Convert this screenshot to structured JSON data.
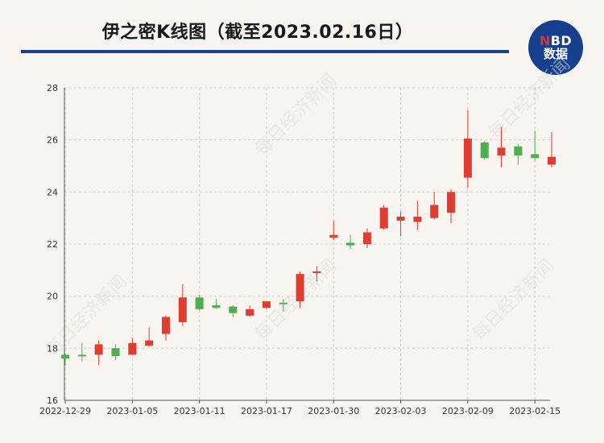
{
  "header": {
    "title": "伊之密K线图（截至2023.02.16日）",
    "logo_top_a": "N",
    "logo_top_b": "BD",
    "logo_bottom": "数据",
    "brand_color": "#163f8e",
    "watermark": "每日经济新闻"
  },
  "chart_data": {
    "type": "candlestick",
    "title": "伊之密K线图（截至2023.02.16日）",
    "ylim": [
      16,
      28
    ],
    "yticks": [
      16,
      18,
      20,
      22,
      24,
      26,
      28
    ],
    "xtick_labels": [
      "2022-12-29",
      "2023-01-05",
      "2023-01-11",
      "2023-01-17",
      "2023-01-30",
      "2023-02-03",
      "2023-02-09",
      "2023-02-15"
    ],
    "up_color": "#e03c31",
    "down_color": "#4caf50",
    "grid": true,
    "candles": [
      {
        "open": 17.75,
        "high": 17.8,
        "low": 17.35,
        "close": 17.6
      },
      {
        "open": 17.75,
        "high": 18.2,
        "low": 17.5,
        "close": 17.7
      },
      {
        "open": 17.75,
        "high": 18.3,
        "low": 17.35,
        "close": 18.15
      },
      {
        "open": 18.0,
        "high": 18.15,
        "low": 17.55,
        "close": 17.7
      },
      {
        "open": 17.75,
        "high": 18.4,
        "low": 17.75,
        "close": 18.2
      },
      {
        "open": 18.1,
        "high": 18.8,
        "low": 18.05,
        "close": 18.3
      },
      {
        "open": 18.55,
        "high": 19.25,
        "low": 18.3,
        "close": 19.2
      },
      {
        "open": 19.0,
        "high": 20.45,
        "low": 18.85,
        "close": 19.95
      },
      {
        "open": 19.95,
        "high": 20.05,
        "low": 19.45,
        "close": 19.5
      },
      {
        "open": 19.65,
        "high": 19.9,
        "low": 19.5,
        "close": 19.55
      },
      {
        "open": 19.6,
        "high": 19.65,
        "low": 19.2,
        "close": 19.35
      },
      {
        "open": 19.25,
        "high": 19.65,
        "low": 19.2,
        "close": 19.5
      },
      {
        "open": 19.55,
        "high": 19.8,
        "low": 19.5,
        "close": 19.8
      },
      {
        "open": 19.75,
        "high": 19.9,
        "low": 19.4,
        "close": 19.7
      },
      {
        "open": 19.8,
        "high": 20.95,
        "low": 19.55,
        "close": 20.85
      },
      {
        "open": 20.9,
        "high": 21.15,
        "low": 20.55,
        "close": 20.95
      },
      {
        "open": 22.25,
        "high": 22.9,
        "low": 22.15,
        "close": 22.35
      },
      {
        "open": 22.05,
        "high": 22.35,
        "low": 21.8,
        "close": 21.95
      },
      {
        "open": 22.0,
        "high": 22.6,
        "low": 21.85,
        "close": 22.45
      },
      {
        "open": 22.6,
        "high": 23.5,
        "low": 22.55,
        "close": 23.4
      },
      {
        "open": 22.9,
        "high": 23.25,
        "low": 22.3,
        "close": 23.05
      },
      {
        "open": 22.85,
        "high": 23.65,
        "low": 22.55,
        "close": 23.05
      },
      {
        "open": 23.0,
        "high": 24.0,
        "low": 22.95,
        "close": 23.5
      },
      {
        "open": 23.2,
        "high": 24.1,
        "low": 22.8,
        "close": 24.0
      },
      {
        "open": 24.55,
        "high": 27.15,
        "low": 24.15,
        "close": 26.05
      },
      {
        "open": 25.9,
        "high": 25.95,
        "low": 25.25,
        "close": 25.3
      },
      {
        "open": 25.4,
        "high": 26.5,
        "low": 24.95,
        "close": 25.7
      },
      {
        "open": 25.75,
        "high": 25.85,
        "low": 25.05,
        "close": 25.4
      },
      {
        "open": 25.45,
        "high": 26.35,
        "low": 25.2,
        "close": 25.3
      },
      {
        "open": 25.05,
        "high": 26.3,
        "low": 24.95,
        "close": 25.35
      }
    ]
  }
}
